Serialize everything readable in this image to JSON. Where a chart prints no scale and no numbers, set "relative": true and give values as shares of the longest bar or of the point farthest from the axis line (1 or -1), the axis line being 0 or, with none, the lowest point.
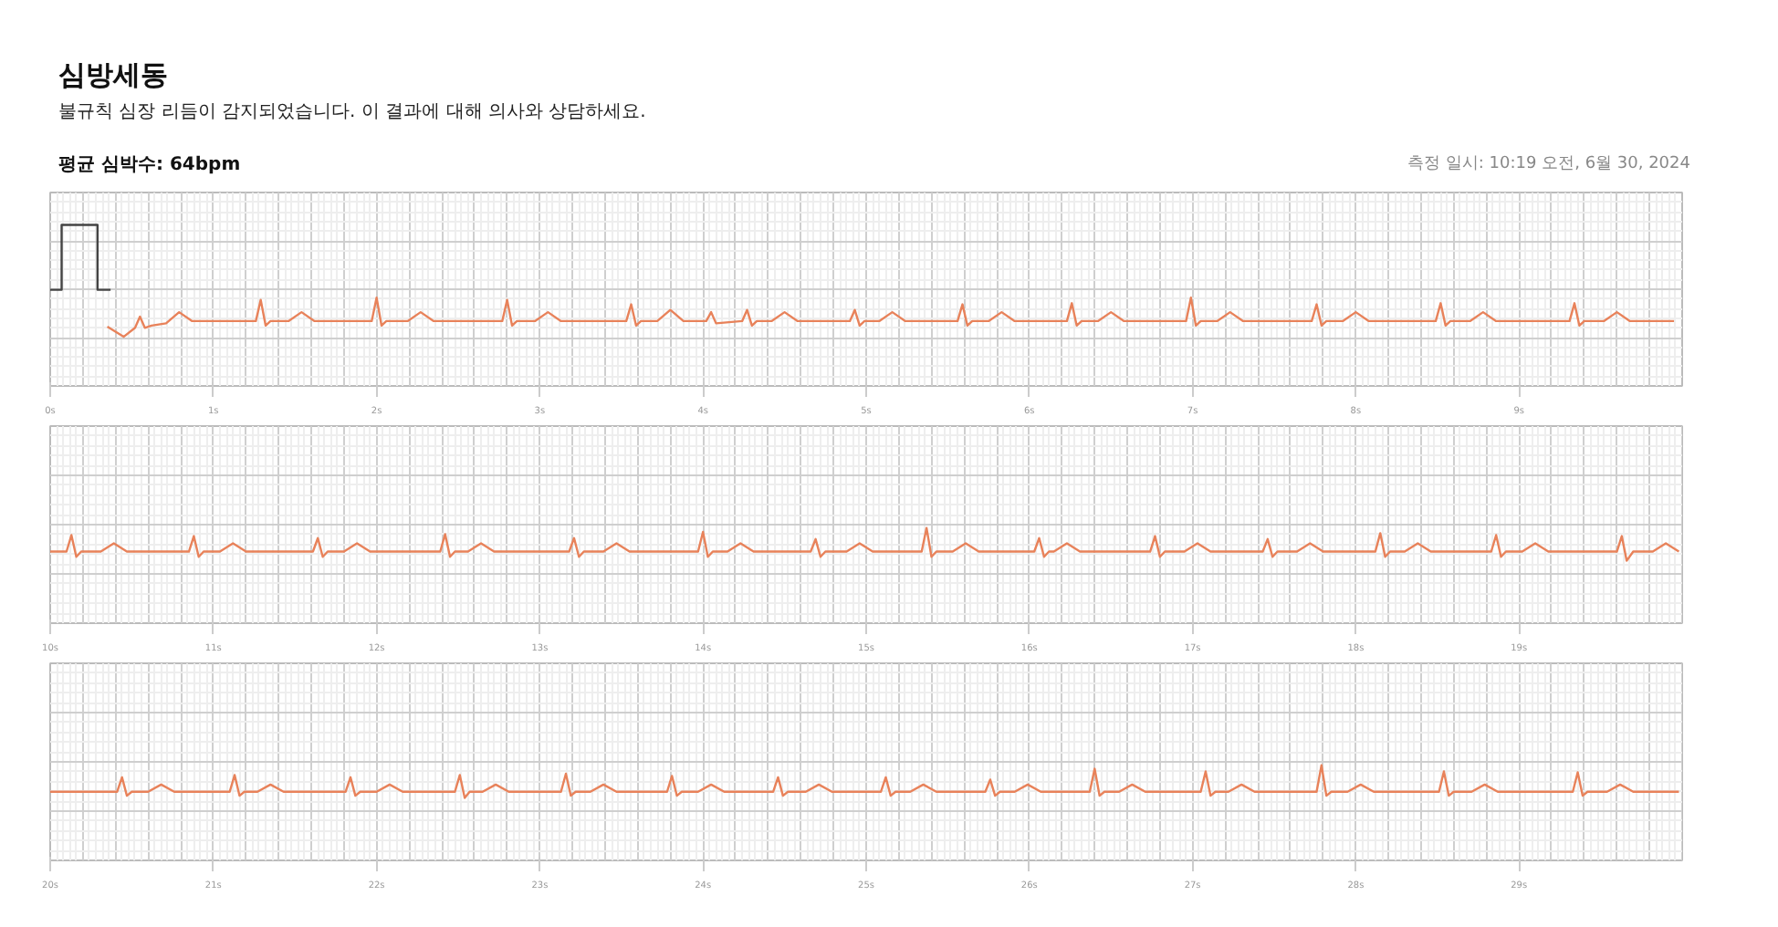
{
  "chart_data": [
    {
      "type": "line",
      "title": "심방세동",
      "subtitle": "불규칙 심장 리듬이 감지되었습니다. 이 결과에 대해 의사와 상담하세요.",
      "annotations": [
        "평균 심박수: 64bpm",
        "측정 일시: 10:19 오전, 6월 30, 2024"
      ],
      "relative": true,
      "grid": true,
      "xlim": [
        0,
        10
      ],
      "xticks": [
        {
          "value": 0,
          "label": "0s"
        },
        {
          "value": 1,
          "label": "1s"
        },
        {
          "value": 2,
          "label": "2s"
        },
        {
          "value": 3,
          "label": "3s"
        },
        {
          "value": 4,
          "label": "4s"
        },
        {
          "value": 5,
          "label": "5s"
        },
        {
          "value": 6,
          "label": "6s"
        },
        {
          "value": 7,
          "label": "7s"
        },
        {
          "value": 8,
          "label": "8s"
        },
        {
          "value": 9,
          "label": "9s"
        }
      ],
      "series": [
        {
          "color": "#444444",
          "x": [
            0,
            0.07,
            0.07,
            0.29,
            0.29,
            0.37
          ],
          "values": [
            0.42,
            0.42,
            1,
            1,
            0.42,
            0.42
          ]
        },
        {
          "color": "#e8825a",
          "x": [
            0.35,
            0.45,
            0.52,
            0.55,
            0.58,
            0.62,
            0.71,
            0.79,
            0.87,
            1.26,
            1.29,
            1.32,
            1.35,
            1.46,
            1.54,
            1.62,
            1.97,
            2.0,
            2.03,
            2.06,
            2.19,
            2.27,
            2.35,
            2.77,
            2.8,
            2.83,
            2.86,
            2.97,
            3.05,
            3.13,
            3.53,
            3.56,
            3.59,
            3.62,
            3.72,
            3.8,
            3.88,
            4.02,
            4.05,
            4.08,
            4.24,
            4.27,
            4.3,
            4.33,
            4.42,
            4.5,
            4.58,
            4.9,
            4.93,
            4.96,
            4.99,
            5.08,
            5.16,
            5.24,
            5.56,
            5.59,
            5.62,
            5.65,
            5.75,
            5.83,
            5.91,
            6.23,
            6.26,
            6.29,
            6.32,
            6.42,
            6.5,
            6.58,
            6.96,
            6.99,
            7.02,
            7.05,
            7.15,
            7.23,
            7.31,
            7.73,
            7.76,
            7.79,
            7.82,
            7.92,
            8.0,
            8.08,
            8.49,
            8.52,
            8.55,
            8.58,
            8.7,
            8.78,
            8.86,
            9.31,
            9.34,
            9.37,
            9.4,
            9.52,
            9.6,
            9.68,
            9.95
          ],
          "values": [
            0.09,
            0.0,
            0.08,
            0.18,
            0.08,
            0.1,
            0.12,
            0.22,
            0.14,
            0.14,
            0.33,
            0.1,
            0.14,
            0.14,
            0.22,
            0.14,
            0.14,
            0.35,
            0.1,
            0.14,
            0.14,
            0.22,
            0.14,
            0.14,
            0.33,
            0.1,
            0.14,
            0.14,
            0.22,
            0.14,
            0.14,
            0.29,
            0.1,
            0.14,
            0.14,
            0.24,
            0.14,
            0.14,
            0.22,
            0.12,
            0.14,
            0.24,
            0.1,
            0.14,
            0.14,
            0.22,
            0.14,
            0.14,
            0.24,
            0.1,
            0.14,
            0.14,
            0.22,
            0.14,
            0.14,
            0.29,
            0.1,
            0.14,
            0.14,
            0.22,
            0.14,
            0.14,
            0.3,
            0.1,
            0.14,
            0.14,
            0.22,
            0.14,
            0.14,
            0.35,
            0.1,
            0.14,
            0.14,
            0.22,
            0.14,
            0.14,
            0.29,
            0.1,
            0.14,
            0.14,
            0.22,
            0.14,
            0.14,
            0.3,
            0.1,
            0.14,
            0.14,
            0.22,
            0.14,
            0.14,
            0.3,
            0.1,
            0.14,
            0.14,
            0.22,
            0.14,
            0.14
          ]
        }
      ]
    },
    {
      "type": "line",
      "relative": true,
      "grid": true,
      "xlim": [
        10,
        20
      ],
      "xticks": [
        {
          "value": 10,
          "label": "10s"
        },
        {
          "value": 11,
          "label": "11s"
        },
        {
          "value": 12,
          "label": "12s"
        },
        {
          "value": 13,
          "label": "13s"
        },
        {
          "value": 14,
          "label": "14s"
        },
        {
          "value": 15,
          "label": "15s"
        },
        {
          "value": 16,
          "label": "16s"
        },
        {
          "value": 17,
          "label": "17s"
        },
        {
          "value": 18,
          "label": "18s"
        },
        {
          "value": 19,
          "label": "19s"
        }
      ],
      "series": [
        {
          "color": "#e8825a",
          "x": [
            10.0,
            10.1,
            10.13,
            10.16,
            10.19,
            10.31,
            10.39,
            10.47,
            10.85,
            10.88,
            10.91,
            10.94,
            11.04,
            11.12,
            11.2,
            11.61,
            11.64,
            11.67,
            11.7,
            11.8,
            11.88,
            11.96,
            12.39,
            12.42,
            12.45,
            12.48,
            12.56,
            12.64,
            12.72,
            13.18,
            13.21,
            13.24,
            13.27,
            13.39,
            13.47,
            13.55,
            13.97,
            14.0,
            14.03,
            14.06,
            14.15,
            14.23,
            14.31,
            14.66,
            14.69,
            14.72,
            14.75,
            14.88,
            14.96,
            15.04,
            15.34,
            15.37,
            15.4,
            15.43,
            15.53,
            15.61,
            15.69,
            16.03,
            16.06,
            16.09,
            16.12,
            16.15,
            16.23,
            16.31,
            16.74,
            16.77,
            16.8,
            16.83,
            16.95,
            17.03,
            17.11,
            17.43,
            17.46,
            17.49,
            17.52,
            17.64,
            17.72,
            17.8,
            18.12,
            18.15,
            18.18,
            18.21,
            18.3,
            18.38,
            18.46,
            18.83,
            18.86,
            18.89,
            18.92,
            19.02,
            19.1,
            19.18,
            19.6,
            19.63,
            19.66,
            19.7,
            19.82,
            19.9,
            19.98
          ],
          "values": [
            0.28,
            0.28,
            0.78,
            0.12,
            0.28,
            0.28,
            0.53,
            0.28,
            0.28,
            0.75,
            0.12,
            0.28,
            0.28,
            0.53,
            0.28,
            0.28,
            0.69,
            0.12,
            0.28,
            0.28,
            0.53,
            0.28,
            0.28,
            0.81,
            0.12,
            0.28,
            0.28,
            0.53,
            0.28,
            0.28,
            0.69,
            0.12,
            0.28,
            0.28,
            0.53,
            0.28,
            0.28,
            0.88,
            0.12,
            0.28,
            0.28,
            0.53,
            0.28,
            0.28,
            0.66,
            0.12,
            0.28,
            0.28,
            0.53,
            0.28,
            0.28,
            1,
            0.12,
            0.28,
            0.28,
            0.53,
            0.28,
            0.28,
            0.69,
            0.12,
            0.28,
            0.28,
            0.53,
            0.28,
            0.28,
            0.75,
            0.12,
            0.28,
            0.28,
            0.53,
            0.28,
            0.28,
            0.66,
            0.12,
            0.28,
            0.28,
            0.53,
            0.28,
            0.28,
            0.84,
            0.12,
            0.28,
            0.28,
            0.53,
            0.28,
            0.28,
            0.78,
            0.12,
            0.28,
            0.28,
            0.53,
            0.28,
            0.28,
            0.75,
            0,
            0.28,
            0.28,
            0.53,
            0.28
          ]
        }
      ]
    },
    {
      "type": "line",
      "relative": true,
      "grid": true,
      "xlim": [
        20,
        30
      ],
      "xticks": [
        {
          "value": 20,
          "label": "20s"
        },
        {
          "value": 21,
          "label": "21s"
        },
        {
          "value": 22,
          "label": "22s"
        },
        {
          "value": 23,
          "label": "23s"
        },
        {
          "value": 24,
          "label": "24s"
        },
        {
          "value": 25,
          "label": "25s"
        },
        {
          "value": 26,
          "label": "26s"
        },
        {
          "value": 27,
          "label": "27s"
        },
        {
          "value": 28,
          "label": "28s"
        },
        {
          "value": 29,
          "label": "29s"
        }
      ],
      "series": [
        {
          "color": "#e8825a",
          "x": [
            20.0,
            20.41,
            20.44,
            20.47,
            20.5,
            20.6,
            20.68,
            20.76,
            21.1,
            21.13,
            21.16,
            21.19,
            21.27,
            21.35,
            21.43,
            21.81,
            21.84,
            21.87,
            21.9,
            22.0,
            22.08,
            22.16,
            22.48,
            22.51,
            22.54,
            22.57,
            22.65,
            22.73,
            22.81,
            23.13,
            23.16,
            23.19,
            23.22,
            23.31,
            23.39,
            23.47,
            23.78,
            23.81,
            23.84,
            23.87,
            23.97,
            24.05,
            24.13,
            24.43,
            24.46,
            24.49,
            24.52,
            24.63,
            24.71,
            24.79,
            25.09,
            25.12,
            25.15,
            25.18,
            25.27,
            25.35,
            25.43,
            25.73,
            25.76,
            25.79,
            25.82,
            25.91,
            25.99,
            26.07,
            26.37,
            26.4,
            26.43,
            26.46,
            26.55,
            26.63,
            26.71,
            27.05,
            27.08,
            27.11,
            27.14,
            27.22,
            27.3,
            27.38,
            27.76,
            27.79,
            27.82,
            27.85,
            27.95,
            28.03,
            28.11,
            28.51,
            28.54,
            28.57,
            28.6,
            28.71,
            28.79,
            28.87,
            29.33,
            29.36,
            29.39,
            29.42,
            29.54,
            29.62,
            29.7,
            29.98
          ],
          "values": [
            0.19,
            0.19,
            0.63,
            0.07,
            0.19,
            0.19,
            0.41,
            0.19,
            0.19,
            0.7,
            0.07,
            0.19,
            0.19,
            0.41,
            0.19,
            0.19,
            0.63,
            0.07,
            0.19,
            0.19,
            0.41,
            0.19,
            0.19,
            0.7,
            0,
            0.19,
            0.19,
            0.41,
            0.19,
            0.19,
            0.74,
            0.07,
            0.19,
            0.19,
            0.41,
            0.19,
            0.19,
            0.67,
            0.07,
            0.19,
            0.19,
            0.41,
            0.19,
            0.19,
            0.63,
            0.07,
            0.19,
            0.19,
            0.41,
            0.19,
            0.19,
            0.63,
            0.07,
            0.19,
            0.19,
            0.41,
            0.19,
            0.19,
            0.56,
            0.07,
            0.19,
            0.19,
            0.41,
            0.19,
            0.19,
            0.89,
            0.07,
            0.19,
            0.19,
            0.41,
            0.19,
            0.19,
            0.81,
            0.07,
            0.19,
            0.19,
            0.41,
            0.19,
            0.19,
            1,
            0.07,
            0.19,
            0.19,
            0.41,
            0.19,
            0.19,
            0.81,
            0.07,
            0.19,
            0.19,
            0.41,
            0.19,
            0.19,
            0.78,
            0.07,
            0.19,
            0.19,
            0.41,
            0.19,
            0.19
          ]
        }
      ]
    }
  ]
}
